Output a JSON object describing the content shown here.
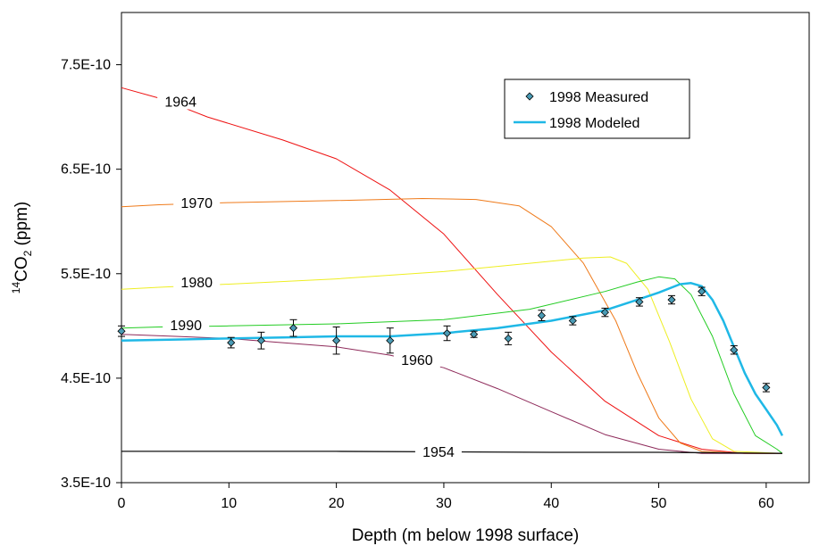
{
  "chart_data": {
    "type": "line",
    "title": "",
    "xlabel": "Depth (m below 1998 surface)",
    "ylabel_parts": {
      "sup": "14",
      "main": "CO",
      "sub": "2",
      "unit": " (ppm)"
    },
    "xlim": [
      0,
      64
    ],
    "ylim": [
      3.5e-10,
      8e-10
    ],
    "x_ticks": [
      0,
      10,
      20,
      30,
      40,
      50,
      60
    ],
    "x_tick_labels": [
      "0",
      "10",
      "20",
      "30",
      "40",
      "50",
      "60"
    ],
    "y_ticks": [
      3.5e-10,
      4.5e-10,
      5.5e-10,
      6.5e-10,
      7.5e-10
    ],
    "y_tick_labels": [
      "3.5E-10",
      "4.5E-10",
      "5.5E-10",
      "6.5E-10",
      "7.5E-10"
    ],
    "grid": false,
    "legend": {
      "placement": "top-right",
      "entries": [
        {
          "label": "1998 Measured",
          "marker": "diamond",
          "color": "#4a9bb5"
        },
        {
          "label": "1998 Modeled",
          "marker": "line",
          "color": "#1fb8e6"
        }
      ]
    },
    "series": [
      {
        "name": "1964",
        "color": "#ee1111",
        "width": 1,
        "label_at": [
          5.5,
          7.15e-10
        ],
        "points": [
          [
            0,
            7.28e-10
          ],
          [
            3.5,
            7.18e-10
          ],
          [
            8,
            7e-10
          ],
          [
            15,
            6.78e-10
          ],
          [
            20,
            6.6e-10
          ],
          [
            25,
            6.3e-10
          ],
          [
            30,
            5.88e-10
          ],
          [
            35,
            5.3e-10
          ],
          [
            40,
            4.75e-10
          ],
          [
            45,
            4.28e-10
          ],
          [
            50,
            3.95e-10
          ],
          [
            54,
            3.82e-10
          ],
          [
            58,
            3.78e-10
          ],
          [
            61.5,
            3.78e-10
          ]
        ]
      },
      {
        "name": "1970",
        "color": "#ef7a1a",
        "width": 1,
        "label_at": [
          7,
          6.18e-10
        ],
        "points": [
          [
            0,
            6.14e-10
          ],
          [
            3.5,
            6.16e-10
          ],
          [
            10,
            6.18e-10
          ],
          [
            20,
            6.2e-10
          ],
          [
            28,
            6.22e-10
          ],
          [
            33,
            6.21e-10
          ],
          [
            37,
            6.15e-10
          ],
          [
            40,
            5.95e-10
          ],
          [
            43,
            5.6e-10
          ],
          [
            46,
            5.05e-10
          ],
          [
            48,
            4.55e-10
          ],
          [
            50,
            4.12e-10
          ],
          [
            52,
            3.88e-10
          ],
          [
            54,
            3.8e-10
          ],
          [
            58,
            3.78e-10
          ],
          [
            61.5,
            3.78e-10
          ]
        ]
      },
      {
        "name": "1980",
        "color": "#eeee22",
        "width": 1,
        "label_at": [
          7,
          5.42e-10
        ],
        "points": [
          [
            0,
            5.35e-10
          ],
          [
            3.5,
            5.37e-10
          ],
          [
            10,
            5.4e-10
          ],
          [
            20,
            5.45e-10
          ],
          [
            30,
            5.52e-10
          ],
          [
            38,
            5.6e-10
          ],
          [
            43,
            5.65e-10
          ],
          [
            45.5,
            5.66e-10
          ],
          [
            47,
            5.6e-10
          ],
          [
            49,
            5.35e-10
          ],
          [
            51,
            4.85e-10
          ],
          [
            53,
            4.3e-10
          ],
          [
            55,
            3.92e-10
          ],
          [
            57,
            3.8e-10
          ],
          [
            61.5,
            3.78e-10
          ]
        ]
      },
      {
        "name": "1990",
        "color": "#22cc22",
        "width": 1,
        "label_at": [
          6,
          5.01e-10
        ],
        "points": [
          [
            0,
            4.98e-10
          ],
          [
            3.5,
            4.99e-10
          ],
          [
            10,
            5e-10
          ],
          [
            20,
            5.02e-10
          ],
          [
            30,
            5.06e-10
          ],
          [
            38,
            5.16e-10
          ],
          [
            45,
            5.33e-10
          ],
          [
            48,
            5.42e-10
          ],
          [
            50,
            5.47e-10
          ],
          [
            51.5,
            5.45e-10
          ],
          [
            53,
            5.3e-10
          ],
          [
            55,
            4.9e-10
          ],
          [
            57,
            4.35e-10
          ],
          [
            59,
            3.95e-10
          ],
          [
            61,
            3.82e-10
          ],
          [
            61.5,
            3.78e-10
          ]
        ]
      },
      {
        "name": "1960",
        "color": "#8e2a5a",
        "width": 1,
        "label_at": [
          27.5,
          4.68e-10
        ],
        "points": [
          [
            0,
            4.92e-10
          ],
          [
            5,
            4.9e-10
          ],
          [
            10,
            4.88e-10
          ],
          [
            15,
            4.84e-10
          ],
          [
            20,
            4.8e-10
          ],
          [
            25,
            4.72e-10
          ],
          [
            30,
            4.6e-10
          ],
          [
            35,
            4.4e-10
          ],
          [
            40,
            4.18e-10
          ],
          [
            45,
            3.96e-10
          ],
          [
            50,
            3.82e-10
          ],
          [
            54,
            3.78e-10
          ],
          [
            58,
            3.78e-10
          ],
          [
            61.5,
            3.78e-10
          ]
        ]
      },
      {
        "name": "1954",
        "color": "#111111",
        "width": 1.3,
        "label_at": [
          29.5,
          3.8e-10
        ],
        "points": [
          [
            0,
            3.8e-10
          ],
          [
            20,
            3.8e-10
          ],
          [
            40,
            3.79e-10
          ],
          [
            50,
            3.79e-10
          ],
          [
            61.5,
            3.78e-10
          ]
        ]
      },
      {
        "name": "1998 Modeled",
        "color": "#1fb8e6",
        "width": 2.5,
        "points": [
          [
            0,
            4.86e-10
          ],
          [
            5,
            4.87e-10
          ],
          [
            10,
            4.88e-10
          ],
          [
            15,
            4.89e-10
          ],
          [
            20,
            4.9e-10
          ],
          [
            25,
            4.9e-10
          ],
          [
            30,
            4.93e-10
          ],
          [
            35,
            4.98e-10
          ],
          [
            40,
            5.05e-10
          ],
          [
            45,
            5.15e-10
          ],
          [
            48,
            5.25e-10
          ],
          [
            50,
            5.32e-10
          ],
          [
            52,
            5.4e-10
          ],
          [
            53,
            5.41e-10
          ],
          [
            54,
            5.38e-10
          ],
          [
            55,
            5.25e-10
          ],
          [
            56,
            5.05e-10
          ],
          [
            57,
            4.8e-10
          ],
          [
            58,
            4.55e-10
          ],
          [
            59,
            4.35e-10
          ],
          [
            60,
            4.2e-10
          ],
          [
            61,
            4.05e-10
          ],
          [
            61.5,
            3.95e-10
          ]
        ]
      }
    ],
    "measured": {
      "name": "1998 Measured",
      "color": "#4a9bb5",
      "points": [
        {
          "x": 0,
          "y": 4.95e-10,
          "err": 5e-12
        },
        {
          "x": 10.2,
          "y": 4.84e-10,
          "err": 5e-12
        },
        {
          "x": 13,
          "y": 4.86e-10,
          "err": 8e-12
        },
        {
          "x": 16,
          "y": 4.98e-10,
          "err": 8e-12
        },
        {
          "x": 20,
          "y": 4.86e-10,
          "err": 1.3e-11
        },
        {
          "x": 25,
          "y": 4.86e-10,
          "err": 1.2e-11
        },
        {
          "x": 30.3,
          "y": 4.93e-10,
          "err": 7e-12
        },
        {
          "x": 32.8,
          "y": 4.92e-10,
          "err": 3e-12
        },
        {
          "x": 36,
          "y": 4.88e-10,
          "err": 6e-12
        },
        {
          "x": 39.1,
          "y": 5.1e-10,
          "err": 5e-12
        },
        {
          "x": 42,
          "y": 5.05e-10,
          "err": 4e-12
        },
        {
          "x": 45,
          "y": 5.13e-10,
          "err": 4e-12
        },
        {
          "x": 48.2,
          "y": 5.23e-10,
          "err": 4e-12
        },
        {
          "x": 51.2,
          "y": 5.25e-10,
          "err": 4e-12
        },
        {
          "x": 54,
          "y": 5.33e-10,
          "err": 4e-12
        },
        {
          "x": 57,
          "y": 4.77e-10,
          "err": 4e-12
        },
        {
          "x": 60,
          "y": 4.41e-10,
          "err": 4e-12
        }
      ]
    }
  }
}
